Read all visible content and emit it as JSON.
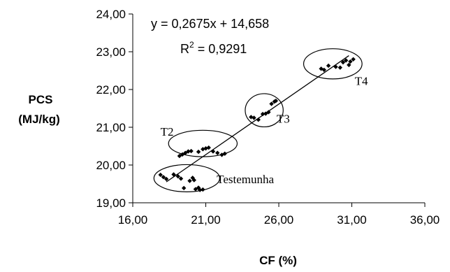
{
  "chart_data": {
    "type": "scatter",
    "xlabel": "CF (%)",
    "ylabel_line1": "PCS",
    "ylabel_line2": "(MJ/kg)",
    "xlim": [
      16,
      36
    ],
    "ylim": [
      19,
      24
    ],
    "x_ticks": [
      "16,00",
      "21,00",
      "26,00",
      "31,00",
      "36,00"
    ],
    "x_tick_values": [
      16,
      21,
      26,
      31,
      36
    ],
    "y_ticks": [
      "19,00",
      "20,00",
      "21,00",
      "22,00",
      "23,00",
      "24,00"
    ],
    "y_tick_values": [
      19,
      20,
      21,
      22,
      23,
      24
    ],
    "equation": "y = 0,2675x + 14,658",
    "r2_prefix": "R",
    "r2_sup": "2",
    "r2_value": " = 0,9291",
    "trendline": {
      "slope": 0.2675,
      "intercept": 14.658,
      "x_range": [
        18.3,
        30.8
      ]
    },
    "groups": [
      {
        "label": "Testemunha",
        "center": [
          19.7,
          19.65
        ],
        "radii": [
          2.25,
          0.36
        ]
      },
      {
        "label": "T2",
        "center": [
          20.8,
          20.57
        ],
        "radii": [
          2.35,
          0.35
        ]
      },
      {
        "label": "T3",
        "center": [
          25.0,
          21.45
        ],
        "radii": [
          1.3,
          0.44
        ]
      },
      {
        "label": "T4",
        "center": [
          29.7,
          22.68
        ],
        "radii": [
          2.0,
          0.4
        ]
      }
    ],
    "points": [
      [
        17.9,
        19.74
      ],
      [
        18.1,
        19.68
      ],
      [
        18.3,
        19.63
      ],
      [
        18.8,
        19.75
      ],
      [
        19.1,
        19.7
      ],
      [
        19.3,
        19.64
      ],
      [
        19.5,
        19.39
      ],
      [
        19.9,
        19.58
      ],
      [
        20.1,
        19.66
      ],
      [
        20.2,
        19.6
      ],
      [
        20.3,
        19.36
      ],
      [
        20.5,
        19.4
      ],
      [
        20.6,
        19.34
      ],
      [
        20.8,
        19.35
      ],
      [
        19.2,
        20.24
      ],
      [
        19.4,
        20.28
      ],
      [
        19.6,
        20.32
      ],
      [
        19.8,
        20.36
      ],
      [
        20.0,
        20.37
      ],
      [
        20.5,
        20.35
      ],
      [
        20.8,
        20.42
      ],
      [
        21.0,
        20.44
      ],
      [
        21.2,
        20.46
      ],
      [
        21.5,
        20.36
      ],
      [
        21.8,
        20.32
      ],
      [
        22.1,
        20.27
      ],
      [
        22.3,
        20.3
      ],
      [
        24.1,
        21.27
      ],
      [
        24.3,
        21.25
      ],
      [
        24.6,
        21.2
      ],
      [
        24.9,
        21.35
      ],
      [
        25.1,
        21.36
      ],
      [
        25.3,
        21.4
      ],
      [
        25.5,
        21.62
      ],
      [
        25.7,
        21.68
      ],
      [
        25.8,
        21.7
      ],
      [
        28.9,
        22.55
      ],
      [
        29.1,
        22.52
      ],
      [
        29.4,
        22.63
      ],
      [
        29.9,
        22.6
      ],
      [
        30.2,
        22.58
      ],
      [
        30.4,
        22.72
      ],
      [
        30.6,
        22.77
      ],
      [
        30.8,
        22.65
      ],
      [
        30.9,
        22.74
      ],
      [
        31.1,
        22.8
      ]
    ]
  }
}
